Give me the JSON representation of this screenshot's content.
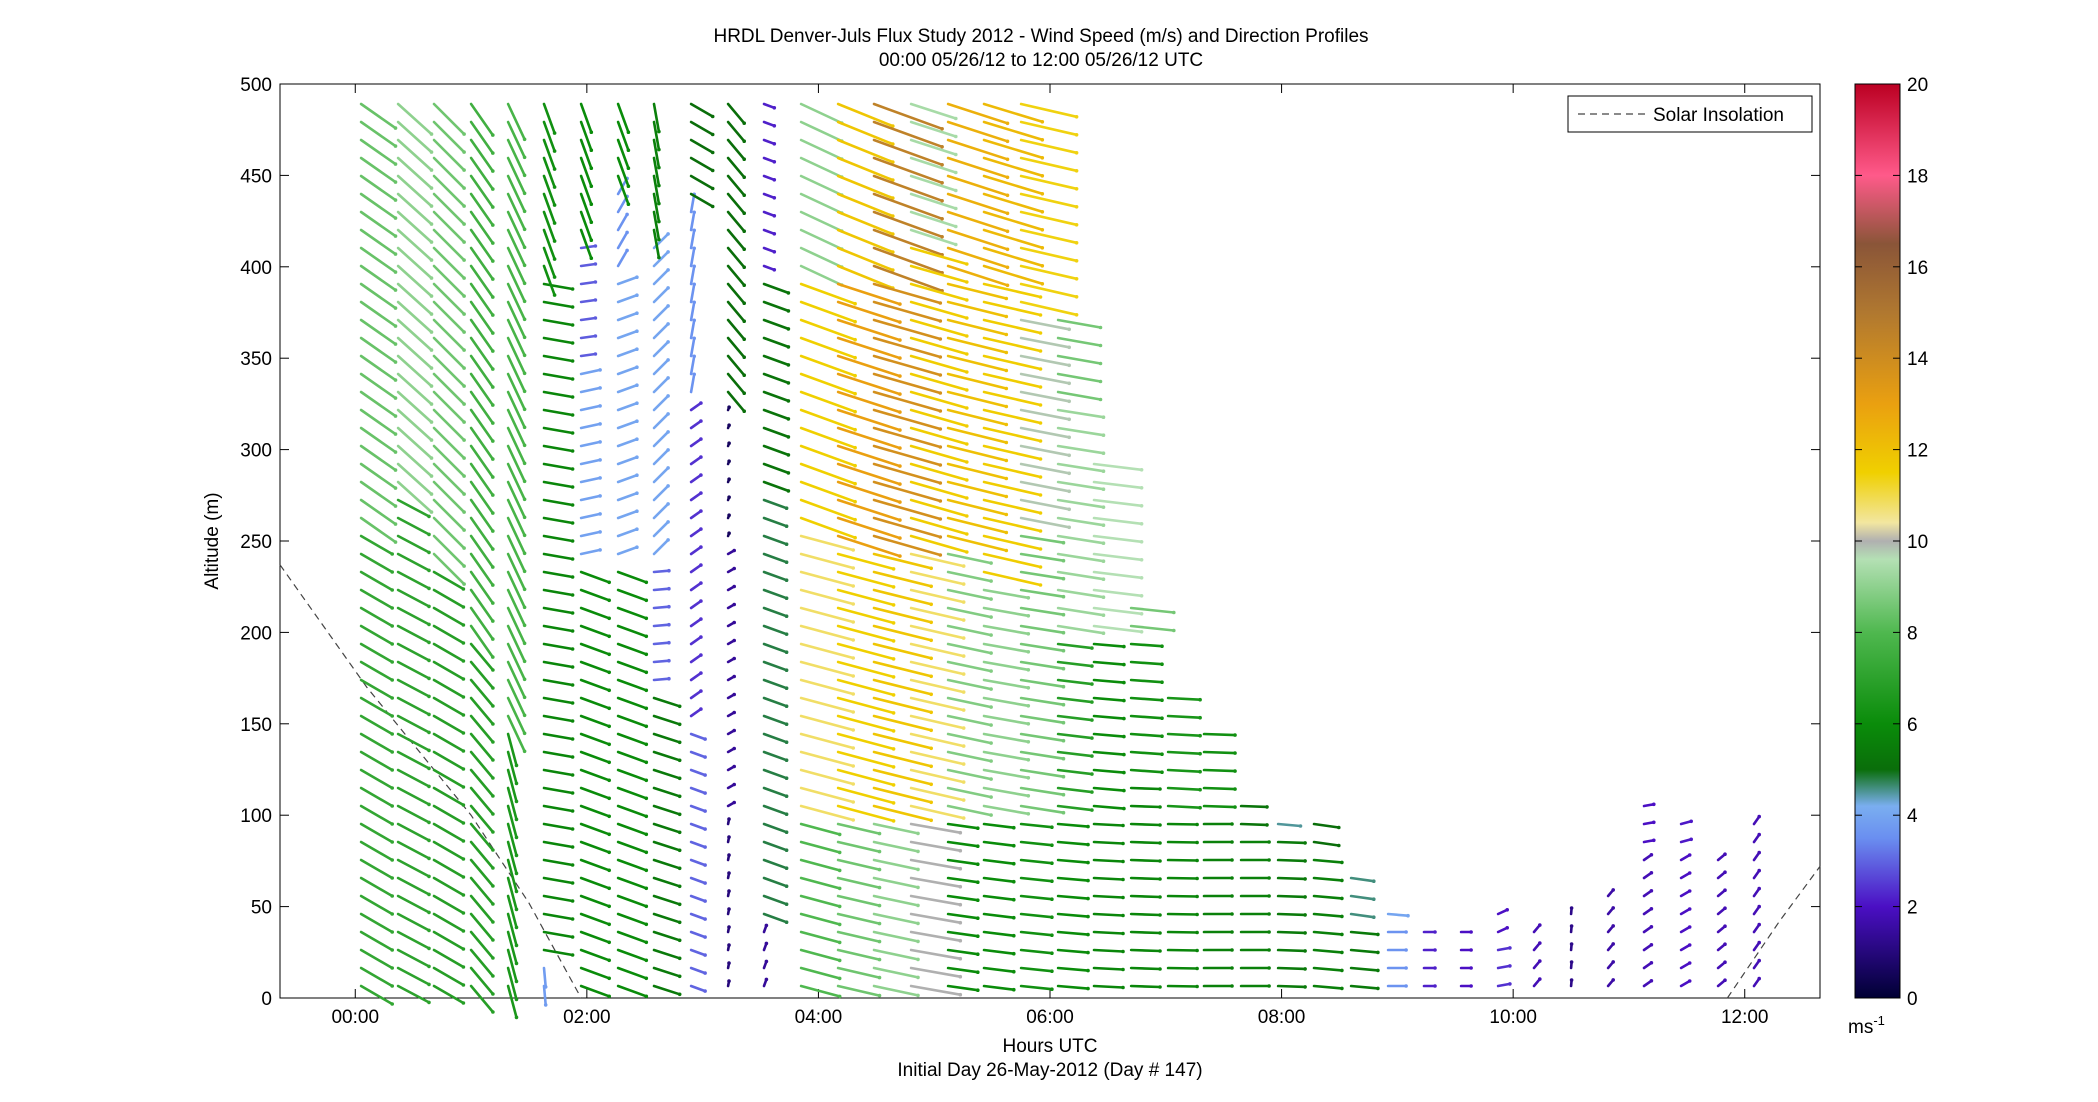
{
  "chart_data": {
    "type": "wind-barb-profile",
    "title": "HRDL Denver-Juls Flux Study 2012 - Wind Speed (m/s) and Direction Profiles",
    "subtitle": "00:00 05/26/12 to 12:00 05/26/12  UTC",
    "xlabel": "Hours UTC",
    "xlabel2": "Initial Day 26-May-2012 (Day # 147)",
    "ylabel": "Altitude (m)",
    "x_range_hours": [
      -0.65,
      12.65
    ],
    "ylim": [
      0,
      500
    ],
    "x_ticks": [
      {
        "hour": 0,
        "label": "00:00"
      },
      {
        "hour": 2,
        "label": "02:00"
      },
      {
        "hour": 4,
        "label": "04:00"
      },
      {
        "hour": 6,
        "label": "06:00"
      },
      {
        "hour": 8,
        "label": "08:00"
      },
      {
        "hour": 10,
        "label": "10:00"
      },
      {
        "hour": 12,
        "label": "12:00"
      }
    ],
    "y_ticks": [
      {
        "value": 0,
        "label": "0"
      },
      {
        "value": 50,
        "label": "50"
      },
      {
        "value": 100,
        "label": "100"
      },
      {
        "value": 150,
        "label": "150"
      },
      {
        "value": 200,
        "label": "200"
      },
      {
        "value": 250,
        "label": "250"
      },
      {
        "value": 300,
        "label": "300"
      },
      {
        "value": 350,
        "label": "350"
      },
      {
        "value": 400,
        "label": "400"
      },
      {
        "value": 450,
        "label": "450"
      },
      {
        "value": 500,
        "label": "500"
      }
    ],
    "colorbar": {
      "range": [
        0,
        20
      ],
      "unit_label": "ms",
      "unit_exponent": "-1",
      "ticks": [
        {
          "value": 0,
          "label": "0"
        },
        {
          "value": 2,
          "label": "2"
        },
        {
          "value": 4,
          "label": "4"
        },
        {
          "value": 6,
          "label": "6"
        },
        {
          "value": 8,
          "label": "8"
        },
        {
          "value": 10,
          "label": "10"
        },
        {
          "value": 12,
          "label": "12"
        },
        {
          "value": 14,
          "label": "14"
        },
        {
          "value": 16,
          "label": "16"
        },
        {
          "value": 18,
          "label": "18"
        },
        {
          "value": 20,
          "label": "20"
        }
      ],
      "stops": [
        {
          "value": 0,
          "color": "#000033"
        },
        {
          "value": 2,
          "color": "#4b0fc4"
        },
        {
          "value": 3.5,
          "color": "#6a8ff0"
        },
        {
          "value": 4.2,
          "color": "#7aaef0"
        },
        {
          "value": 5,
          "color": "#0a6e0a"
        },
        {
          "value": 6,
          "color": "#0a8c0a"
        },
        {
          "value": 8,
          "color": "#4fb84f"
        },
        {
          "value": 9.6,
          "color": "#b4e0b4"
        },
        {
          "value": 10,
          "color": "#b0b0b0"
        },
        {
          "value": 10.4,
          "color": "#f2e6a0"
        },
        {
          "value": 11.5,
          "color": "#f0d000"
        },
        {
          "value": 13,
          "color": "#eaa010"
        },
        {
          "value": 15,
          "color": "#b07830"
        },
        {
          "value": 16.5,
          "color": "#8a5538"
        },
        {
          "value": 18,
          "color": "#ff5a8a"
        },
        {
          "value": 20,
          "color": "#bb0022"
        }
      ]
    },
    "legend": {
      "position": "top-right",
      "entries": [
        {
          "label": "Solar Insolation",
          "style": "dashed",
          "color": "#444444"
        }
      ]
    },
    "solar_insolation_curves": [
      {
        "points": [
          [
            -0.65,
            237
          ],
          [
            0.1,
            170
          ],
          [
            1.0,
            100
          ],
          [
            1.5,
            52
          ],
          [
            1.95,
            0
          ]
        ]
      },
      {
        "points": [
          [
            11.85,
            0
          ],
          [
            12.3,
            42
          ],
          [
            12.65,
            72
          ]
        ]
      }
    ],
    "profiles": [
      {
        "time": 0.05,
        "top": 490,
        "segments": [
          {
            "from": 0,
            "speed": 7.2,
            "dir": 300
          },
          {
            "from": 260,
            "speed": 8.4,
            "dir": 305
          }
        ]
      },
      {
        "time": 0.37,
        "top": 490,
        "segments": [
          {
            "from": 0,
            "speed": 7.0,
            "dir": 298
          },
          {
            "from": 280,
            "speed": 9.0,
            "dir": 312
          }
        ]
      },
      {
        "time": 0.68,
        "top": 490,
        "segments": [
          {
            "from": 0,
            "speed": 6.8,
            "dir": 300
          },
          {
            "from": 240,
            "speed": 8.5,
            "dir": 315
          }
        ]
      },
      {
        "time": 1.0,
        "top": 490,
        "segments": [
          {
            "from": 0,
            "speed": 6.8,
            "dir": 320
          },
          {
            "from": 200,
            "speed": 7.6,
            "dir": 325
          }
        ]
      },
      {
        "time": 1.32,
        "top": 490,
        "segments": [
          {
            "from": 0,
            "speed": 6.5,
            "dir": 345
          },
          {
            "from": 150,
            "speed": 7.8,
            "dir": 335
          }
        ]
      },
      {
        "time": 1.63,
        "top": 490,
        "segments": [
          {
            "from": 0,
            "speed": 3.8,
            "dir": 355
          },
          {
            "from": 20,
            "speed": 5.8,
            "dir": 280
          },
          {
            "from": 400,
            "speed": 6.2,
            "dir": 340
          }
        ]
      },
      {
        "time": 1.95,
        "top": 490,
        "segments": [
          {
            "from": 0,
            "speed": 6.0,
            "dir": 290
          },
          {
            "from": 240,
            "speed": 3.9,
            "dir": 258
          },
          {
            "from": 350,
            "speed": 2.9,
            "dir": 262
          },
          {
            "from": 420,
            "speed": 6.0,
            "dir": 340
          }
        ]
      },
      {
        "time": 2.27,
        "top": 490,
        "segments": [
          {
            "from": 0,
            "speed": 6.0,
            "dir": 290
          },
          {
            "from": 240,
            "speed": 4.0,
            "dir": 250
          },
          {
            "from": 400,
            "speed": 3.6,
            "dir": 210
          },
          {
            "from": 440,
            "speed": 6.0,
            "dir": 340
          }
        ]
      },
      {
        "time": 2.58,
        "top": 490,
        "segments": [
          {
            "from": 0,
            "speed": 5.4,
            "dir": 288
          },
          {
            "from": 170,
            "speed": 3.0,
            "dir": 265
          },
          {
            "from": 240,
            "speed": 4.0,
            "dir": 225
          },
          {
            "from": 420,
            "speed": 5.6,
            "dir": 350
          }
        ]
      },
      {
        "time": 2.9,
        "top": 490,
        "segments": [
          {
            "from": 0,
            "speed": 3.0,
            "dir": 290
          },
          {
            "from": 150,
            "speed": 2.4,
            "dir": 235
          },
          {
            "from": 330,
            "speed": 3.6,
            "dir": 190
          },
          {
            "from": 430,
            "speed": 5.0,
            "dir": 300
          }
        ]
      },
      {
        "time": 3.22,
        "top": 490,
        "segments": [
          {
            "from": 0,
            "speed": 1.0,
            "dir": 190
          },
          {
            "from": 100,
            "speed": 1.4,
            "dir": 240
          },
          {
            "from": 250,
            "speed": 0.6,
            "dir": 200
          },
          {
            "from": 330,
            "speed": 5.0,
            "dir": 320
          }
        ]
      },
      {
        "time": 3.53,
        "top": 490,
        "segments": [
          {
            "from": 0,
            "speed": 1.4,
            "dir": 200
          },
          {
            "from": 40,
            "speed": 4.8,
            "dir": 290
          },
          {
            "from": 280,
            "speed": 5.2,
            "dir": 290
          },
          {
            "from": 400,
            "speed": 2.2,
            "dir": 290
          }
        ]
      },
      {
        "time": 3.85,
        "top": 490,
        "segments": [
          {
            "from": 0,
            "speed": 8.0,
            "dir": 285
          },
          {
            "from": 100,
            "speed": 10.8,
            "dir": 285
          },
          {
            "from": 260,
            "speed": 11.5,
            "dir": 290
          },
          {
            "from": 400,
            "speed": 9.0,
            "dir": 295
          }
        ]
      },
      {
        "time": 4.17,
        "top": 490,
        "segments": [
          {
            "from": 0,
            "speed": 8.5,
            "dir": 283
          },
          {
            "from": 100,
            "speed": 11.5,
            "dir": 285
          },
          {
            "from": 250,
            "speed": 13.0,
            "dir": 288
          },
          {
            "from": 400,
            "speed": 11.8,
            "dir": 292
          }
        ]
      },
      {
        "time": 4.48,
        "top": 490,
        "segments": [
          {
            "from": 0,
            "speed": 9.0,
            "dir": 282
          },
          {
            "from": 100,
            "speed": 11.8,
            "dir": 284
          },
          {
            "from": 250,
            "speed": 13.8,
            "dir": 286
          },
          {
            "from": 400,
            "speed": 14.5,
            "dir": 290
          }
        ]
      },
      {
        "time": 4.8,
        "top": 490,
        "segments": [
          {
            "from": 0,
            "speed": 10.0,
            "dir": 280
          },
          {
            "from": 100,
            "speed": 10.8,
            "dir": 283
          },
          {
            "from": 250,
            "speed": 11.6,
            "dir": 286
          },
          {
            "from": 420,
            "speed": 9.4,
            "dir": 288
          }
        ]
      },
      {
        "time": 5.12,
        "top": 490,
        "segments": [
          {
            "from": 0,
            "speed": 6.0,
            "dir": 278
          },
          {
            "from": 100,
            "speed": 8.8,
            "dir": 282
          },
          {
            "from": 250,
            "speed": 12.0,
            "dir": 284
          },
          {
            "from": 400,
            "speed": 12.5,
            "dir": 288
          }
        ]
      },
      {
        "time": 5.43,
        "top": 490,
        "segments": [
          {
            "from": 0,
            "speed": 6.0,
            "dir": 277
          },
          {
            "from": 100,
            "speed": 9.0,
            "dir": 280
          },
          {
            "from": 230,
            "speed": 11.6,
            "dir": 283
          },
          {
            "from": 400,
            "speed": 12.2,
            "dir": 287
          }
        ]
      },
      {
        "time": 5.75,
        "top": 490,
        "segments": [
          {
            "from": 0,
            "speed": 6.2,
            "dir": 276
          },
          {
            "from": 100,
            "speed": 8.6,
            "dir": 279
          },
          {
            "from": 260,
            "speed": 9.8,
            "dir": 281
          },
          {
            "from": 380,
            "speed": 11.4,
            "dir": 283
          }
        ]
      },
      {
        "time": 6.07,
        "top": 380,
        "segments": [
          {
            "from": 0,
            "speed": 6.0,
            "dir": 275
          },
          {
            "from": 100,
            "speed": 6.8,
            "dir": 277
          },
          {
            "from": 200,
            "speed": 9.2,
            "dir": 279
          },
          {
            "from": 330,
            "speed": 8.6,
            "dir": 280
          }
        ]
      },
      {
        "time": 6.38,
        "top": 300,
        "segments": [
          {
            "from": 0,
            "speed": 5.8,
            "dir": 273
          },
          {
            "from": 100,
            "speed": 6.0,
            "dir": 275
          },
          {
            "from": 200,
            "speed": 9.6,
            "dir": 277
          }
        ]
      },
      {
        "time": 6.7,
        "top": 215,
        "segments": [
          {
            "from": 0,
            "speed": 5.8,
            "dir": 272
          },
          {
            "from": 120,
            "speed": 6.2,
            "dir": 274
          },
          {
            "from": 200,
            "speed": 8.6,
            "dir": 276
          }
        ]
      },
      {
        "time": 7.02,
        "top": 170,
        "segments": [
          {
            "from": 0,
            "speed": 5.8,
            "dir": 271
          },
          {
            "from": 100,
            "speed": 6.4,
            "dir": 273
          }
        ]
      },
      {
        "time": 7.33,
        "top": 145,
        "segments": [
          {
            "from": 0,
            "speed": 5.6,
            "dir": 270
          },
          {
            "from": 100,
            "speed": 6.2,
            "dir": 272
          }
        ]
      },
      {
        "time": 7.65,
        "top": 110,
        "segments": [
          {
            "from": 0,
            "speed": 5.6,
            "dir": 270
          },
          {
            "from": 90,
            "speed": 5.2,
            "dir": 272
          }
        ]
      },
      {
        "time": 7.97,
        "top": 100,
        "segments": [
          {
            "from": 0,
            "speed": 5.4,
            "dir": 272
          },
          {
            "from": 90,
            "speed": 4.5,
            "dir": 275
          }
        ]
      },
      {
        "time": 8.28,
        "top": 95,
        "segments": [
          {
            "from": 0,
            "speed": 5.6,
            "dir": 275
          },
          {
            "from": 80,
            "speed": 5.0,
            "dir": 278
          }
        ]
      },
      {
        "time": 8.6,
        "top": 70,
        "segments": [
          {
            "from": 0,
            "speed": 5.4,
            "dir": 275
          },
          {
            "from": 40,
            "speed": 4.6,
            "dir": 278
          }
        ]
      },
      {
        "time": 8.92,
        "top": 50,
        "segments": [
          {
            "from": 0,
            "speed": 3.6,
            "dir": 270
          },
          {
            "from": 40,
            "speed": 4.0,
            "dir": 275
          }
        ]
      },
      {
        "time": 9.23,
        "top": 45,
        "segments": [
          {
            "from": 0,
            "speed": 2.2,
            "dir": 270
          }
        ]
      },
      {
        "time": 9.55,
        "top": 45,
        "segments": [
          {
            "from": 0,
            "speed": 2.0,
            "dir": 270
          }
        ]
      },
      {
        "time": 9.87,
        "top": 50,
        "segments": [
          {
            "from": 0,
            "speed": 2.4,
            "dir": 260
          },
          {
            "from": 30,
            "speed": 2.0,
            "dir": 245
          }
        ]
      },
      {
        "time": 10.18,
        "top": 40,
        "segments": [
          {
            "from": 0,
            "speed": 1.8,
            "dir": 220
          }
        ]
      },
      {
        "time": 10.5,
        "top": 50,
        "segments": [
          {
            "from": 0,
            "speed": 1.2,
            "dir": 185
          }
        ]
      },
      {
        "time": 10.82,
        "top": 65,
        "segments": [
          {
            "from": 0,
            "speed": 1.6,
            "dir": 220
          }
        ]
      },
      {
        "time": 11.13,
        "top": 105,
        "segments": [
          {
            "from": 0,
            "speed": 1.8,
            "dir": 235
          },
          {
            "from": 80,
            "speed": 2.0,
            "dir": 260
          }
        ]
      },
      {
        "time": 11.45,
        "top": 100,
        "segments": [
          {
            "from": 0,
            "speed": 2.0,
            "dir": 240
          },
          {
            "from": 80,
            "speed": 2.1,
            "dir": 255
          }
        ]
      },
      {
        "time": 11.77,
        "top": 85,
        "segments": [
          {
            "from": 0,
            "speed": 1.8,
            "dir": 230
          }
        ]
      },
      {
        "time": 12.08,
        "top": 100,
        "segments": [
          {
            "from": 0,
            "speed": 1.8,
            "dir": 215
          }
        ]
      }
    ]
  }
}
